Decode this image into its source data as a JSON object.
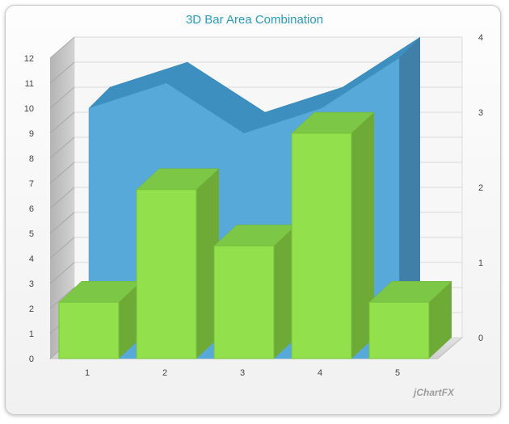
{
  "title": "3D Bar Area Combination",
  "brand": "jChartFX",
  "chart_data": {
    "type": "bar",
    "categories": [
      "1",
      "2",
      "3",
      "4",
      "5"
    ],
    "series": [
      {
        "kind": "area",
        "axis": "left",
        "values": [
          10,
          11,
          9,
          10,
          12
        ],
        "color": "#56a9d9"
      },
      {
        "kind": "bar",
        "axis": "right",
        "values": [
          0.75,
          2.25,
          1.5,
          3.0,
          0.75
        ],
        "color": "#92e04c"
      }
    ],
    "y_left": {
      "min": 0,
      "max": 12,
      "ticks": [
        0,
        1,
        2,
        3,
        4,
        5,
        6,
        7,
        8,
        9,
        10,
        11,
        12
      ]
    },
    "y_right": {
      "min": 0,
      "max": 4,
      "ticks": [
        0,
        1,
        2,
        3,
        4
      ]
    },
    "grid": true,
    "three_d": true
  }
}
